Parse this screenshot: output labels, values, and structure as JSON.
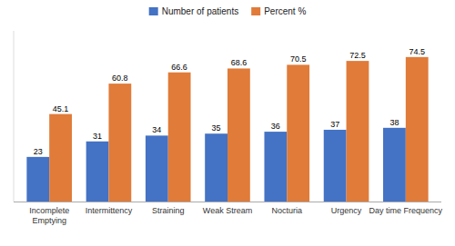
{
  "chart_data": {
    "type": "bar",
    "categories": [
      "Incomplete\nEmptying",
      "Intermittency",
      "Straining",
      "Weak Stream",
      "Nocturia",
      "Urgency",
      "Day time Frequency"
    ],
    "series": [
      {
        "name": "Number of patients",
        "color": "#4472c4",
        "values": [
          23,
          31,
          34,
          35,
          36,
          37,
          38
        ]
      },
      {
        "name": "Percent %",
        "color": "#e07b39",
        "values": [
          45.1,
          60.8,
          66.6,
          68.6,
          70.5,
          72.5,
          74.5
        ]
      }
    ],
    "ylim": [
      0,
      88
    ],
    "data_labels": true,
    "tick_labels": "x",
    "legend": "top",
    "grid": false
  }
}
